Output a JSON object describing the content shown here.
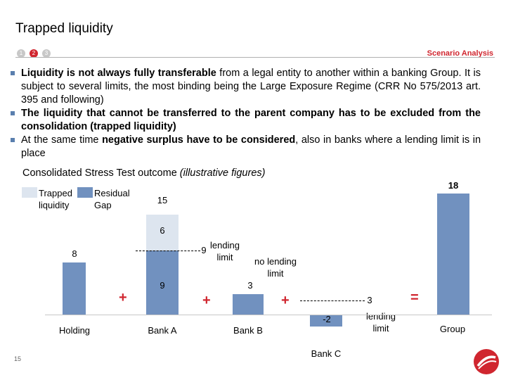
{
  "header": {
    "title": "Trapped liquidity",
    "steps": [
      "1",
      "2",
      "3"
    ],
    "section": "Scenario Analysis"
  },
  "bullets": [
    {
      "bold": "Liquidity is not always fully transferable",
      "rest": " from a legal entity to another within a banking Group. It is subject to several limits, the most binding being the Large Exposure Regime (CRR No 575/2013 art. 395 and following)"
    },
    {
      "bold": "The liquidity that cannot be transferred to the parent company has to be excluded from the consolidation (trapped liquidity)",
      "rest": ""
    },
    {
      "pre": "At the same time ",
      "bold": "negative surplus have to be considered",
      "rest": ", also in banks where a lending limit is in place"
    }
  ],
  "chart": {
    "title": "Consolidated Stress Test outcome",
    "title_note": "(illustrative figures)",
    "legend": [
      {
        "label": "Trapped liquidity",
        "color": "#dde5ef"
      },
      {
        "label": "Residual Gap",
        "color": "#7191bf"
      }
    ],
    "operators": {
      "plus": "+",
      "equals": "="
    },
    "annotations": {
      "bank_a": "lending limit",
      "bank_b": "no lending limit",
      "bank_c": "lending limit"
    },
    "page_number": "15"
  },
  "chart_data": {
    "type": "bar",
    "categories": [
      "Holding",
      "Bank A",
      "Bank B",
      "Bank C",
      "Group"
    ],
    "series": [
      {
        "name": "Residual Gap",
        "values": [
          8,
          9,
          3,
          -2,
          18
        ]
      },
      {
        "name": "Trapped liquidity",
        "values": [
          0,
          6,
          0,
          0,
          0
        ]
      }
    ],
    "totals": {
      "Bank A": 15
    },
    "limits": {
      "Bank A": 9,
      "Bank C": 3
    }
  }
}
